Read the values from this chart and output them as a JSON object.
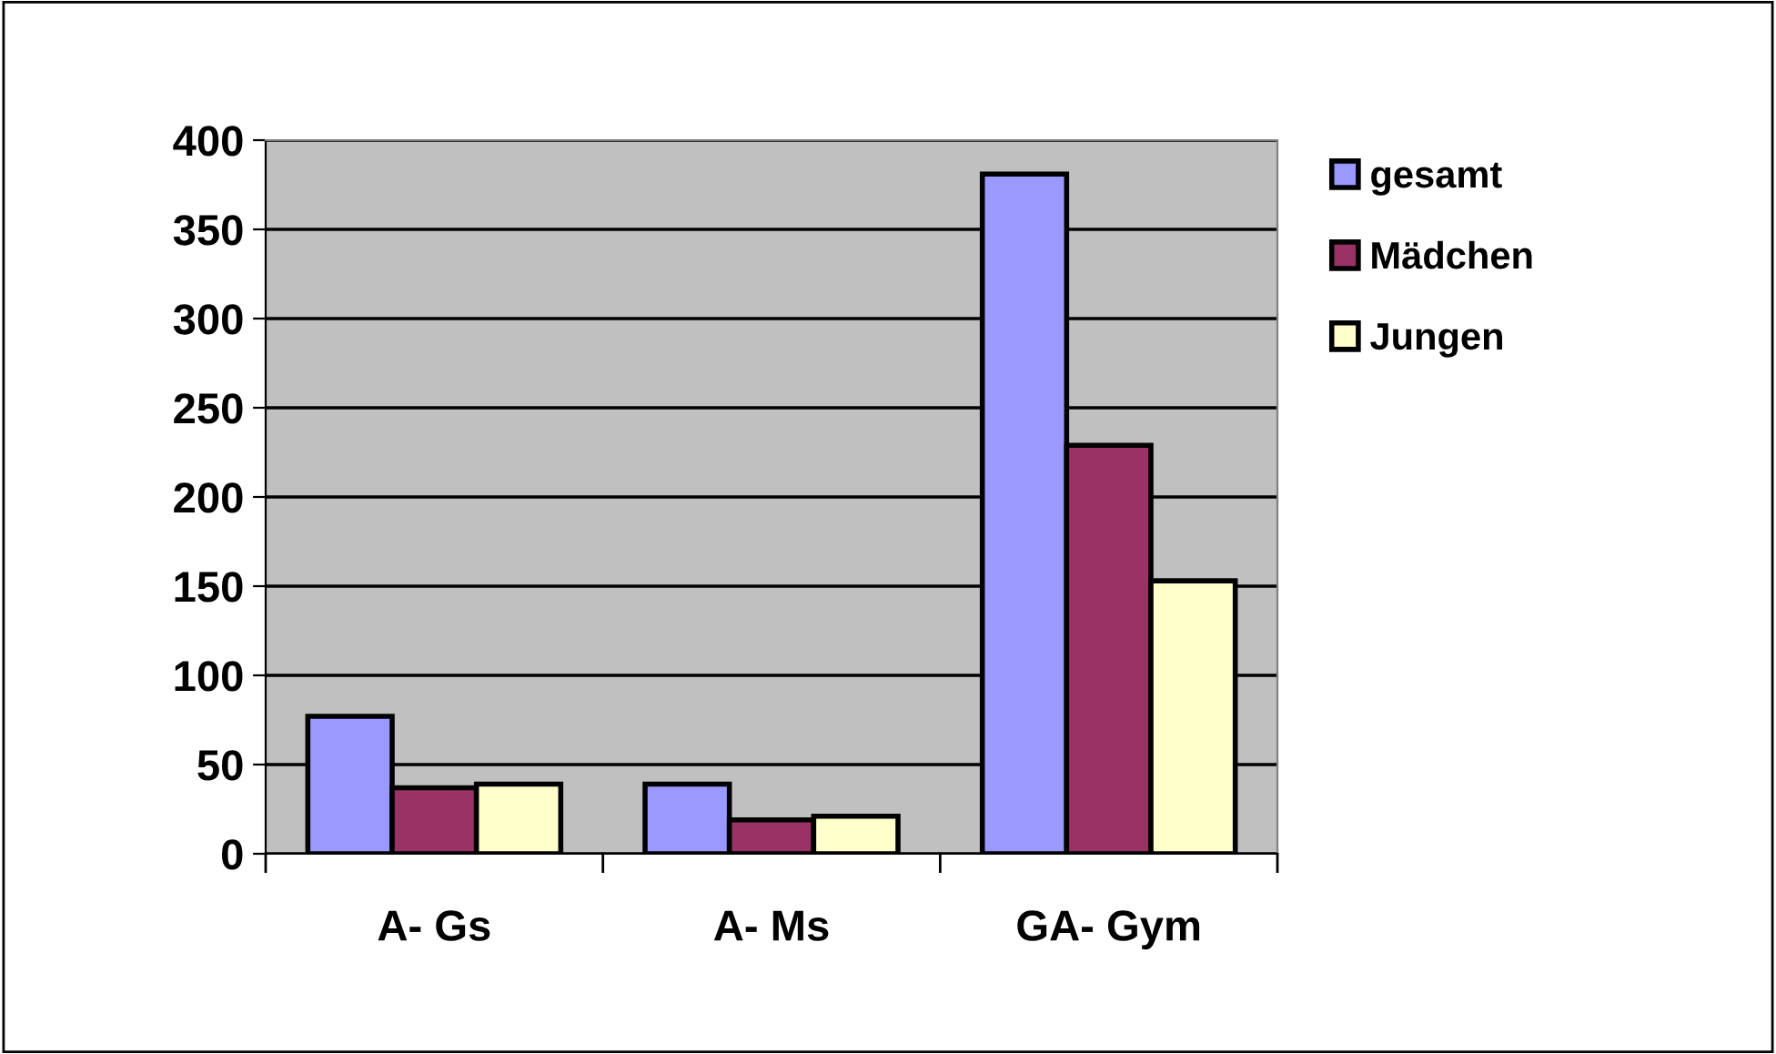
{
  "chart_data": {
    "type": "bar",
    "categories": [
      "A- Gs",
      "A- Ms",
      "GA- Gym"
    ],
    "series": [
      {
        "name": "gesamt",
        "color": "#9999ff",
        "values": [
          77,
          39,
          381
        ]
      },
      {
        "name": "Mädchen",
        "color": "#993366",
        "values": [
          37,
          19,
          229
        ]
      },
      {
        "name": "Jungen",
        "color": "#ffffcc",
        "values": [
          39,
          21,
          153
        ]
      }
    ],
    "ylim": [
      0,
      400
    ],
    "yticks": [
      0,
      50,
      100,
      150,
      200,
      250,
      300,
      350,
      400
    ],
    "grid": "y",
    "legend": "top right"
  }
}
